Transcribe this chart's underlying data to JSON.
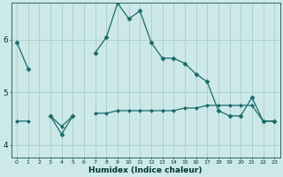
{
  "xlabel": "Humidex (Indice chaleur)",
  "background_color": "#cce8e8",
  "grid_color": "#aacccc",
  "line_color": "#1a6b6b",
  "x_values": [
    0,
    1,
    2,
    3,
    4,
    5,
    6,
    7,
    8,
    9,
    10,
    11,
    12,
    13,
    14,
    15,
    16,
    17,
    18,
    19,
    20,
    21,
    22,
    23
  ],
  "y_main": [
    5.95,
    5.45,
    null,
    4.55,
    4.2,
    4.55,
    null,
    5.75,
    6.05,
    6.7,
    6.4,
    6.55,
    5.95,
    5.65,
    5.65,
    5.55,
    5.35,
    5.2,
    4.65,
    4.55,
    4.55,
    4.9,
    4.45,
    4.45
  ],
  "y_flat": [
    4.45,
    4.45,
    null,
    4.55,
    4.35,
    4.55,
    null,
    4.6,
    4.6,
    4.65,
    4.65,
    4.65,
    4.65,
    4.65,
    4.65,
    4.7,
    4.7,
    4.75,
    4.75,
    4.75,
    4.75,
    4.75,
    4.45,
    4.45
  ],
  "ylim": [
    3.75,
    6.7
  ],
  "yticks": [
    4,
    5,
    6
  ],
  "xlim": [
    -0.5,
    23.5
  ],
  "xticks": [
    0,
    1,
    2,
    3,
    4,
    5,
    6,
    7,
    8,
    9,
    10,
    11,
    12,
    13,
    14,
    15,
    16,
    17,
    18,
    19,
    20,
    21,
    22,
    23
  ],
  "xtick_labels": [
    "0",
    "1",
    "2",
    "3",
    "4",
    "5",
    "6",
    "7",
    "8",
    "9",
    "10",
    "11",
    "12",
    "13",
    "14",
    "15",
    "16",
    "17",
    "18",
    "19",
    "20",
    "21",
    "22",
    "23"
  ]
}
